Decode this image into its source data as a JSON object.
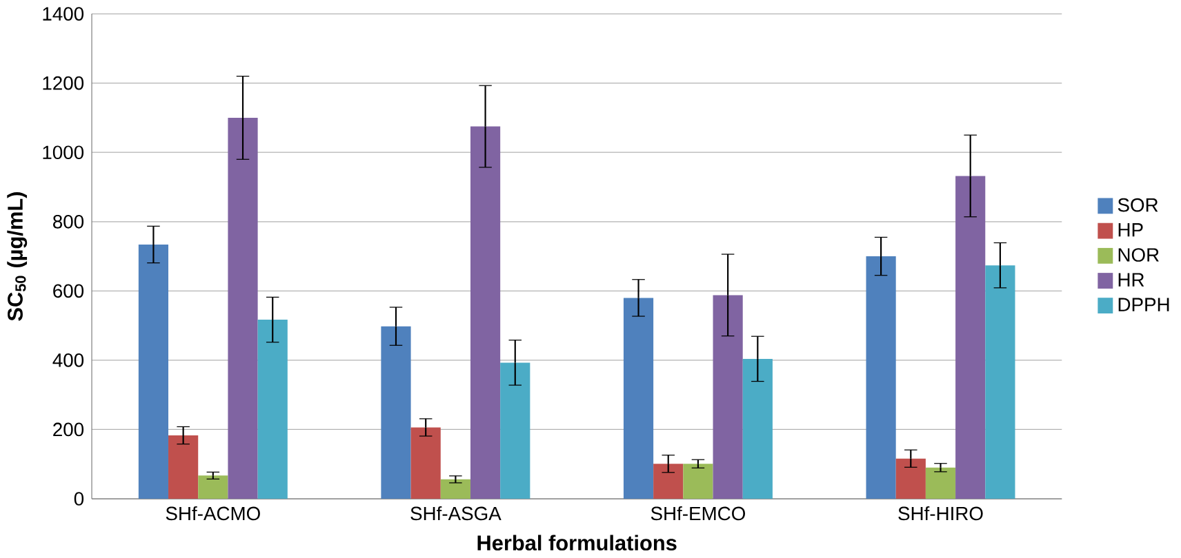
{
  "chart_data": {
    "type": "bar",
    "xlabel": "Herbal formulations",
    "ylabel": "SC$_{50}$ (µg/mL)",
    "categories": [
      "SHf-ACMO",
      "SHf-ASGA",
      "SHf-EMCO",
      "SHf-HIRO"
    ],
    "ylim": [
      0,
      1400
    ],
    "yticks": [
      0,
      200,
      400,
      600,
      800,
      1000,
      1200,
      1400
    ],
    "grid": "y",
    "legend": "right",
    "series": [
      {
        "name": "SOR",
        "color": "#4f81bd",
        "values": [
          734,
          498,
          580,
          700
        ],
        "errors": [
          53,
          55,
          53,
          55
        ]
      },
      {
        "name": "HP",
        "color": "#c0504d",
        "values": [
          183,
          206,
          101,
          116
        ],
        "errors": [
          25,
          25,
          25,
          25
        ]
      },
      {
        "name": "NOR",
        "color": "#9bbb59",
        "values": [
          67,
          56,
          101,
          90
        ],
        "errors": [
          10,
          10,
          12,
          12
        ]
      },
      {
        "name": "HR",
        "color": "#8064a2",
        "values": [
          1100,
          1075,
          588,
          932
        ],
        "errors": [
          120,
          118,
          118,
          118
        ]
      },
      {
        "name": "DPPH",
        "color": "#4bacc6",
        "values": [
          517,
          393,
          404,
          674
        ],
        "errors": [
          65,
          65,
          65,
          65
        ]
      }
    ]
  }
}
